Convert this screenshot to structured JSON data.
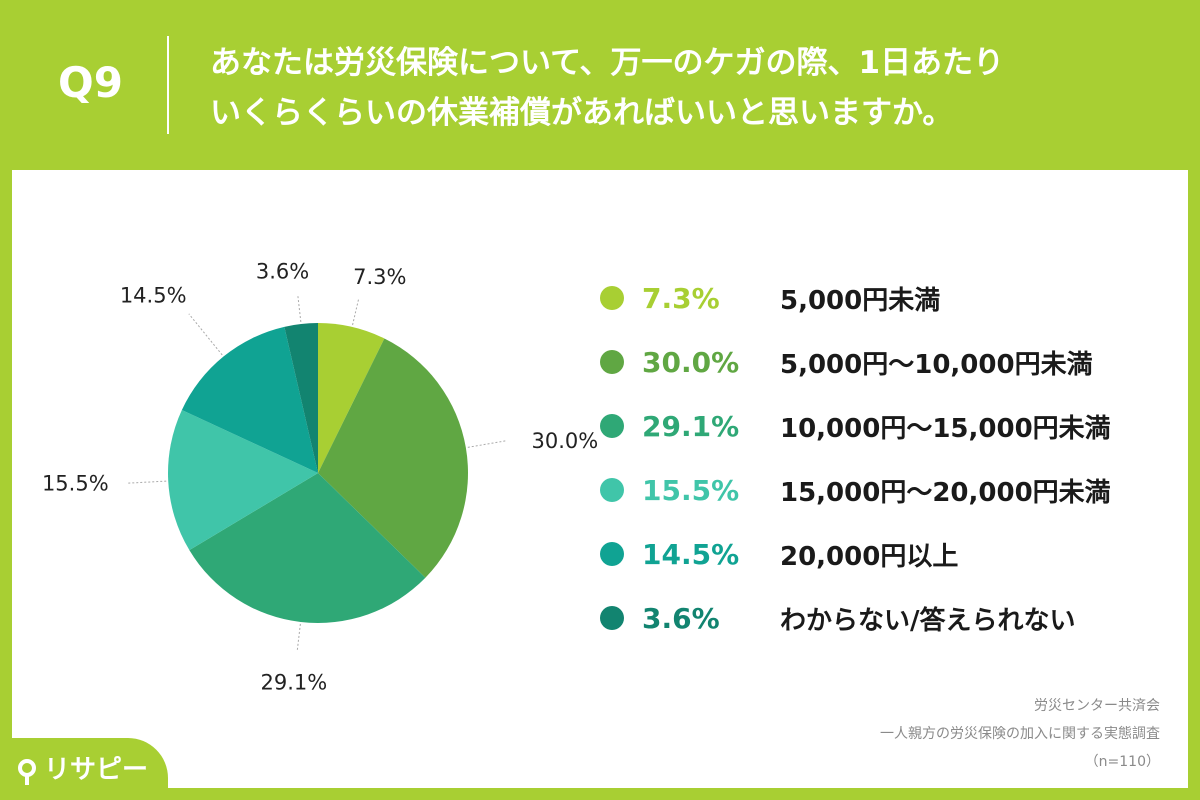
{
  "header": {
    "question_id": "Q9",
    "question_lines": [
      "あなたは労災保険について、万一のケガの際、1日あたり",
      "いくらくらいの休業補償があればいいと思いますか。"
    ]
  },
  "chart_data": {
    "type": "pie",
    "start_angle_deg": 0,
    "direction": "clockwise",
    "slices": [
      {
        "label": "5,000円未満",
        "value": 7.3,
        "pct_label": "7.3%",
        "color": "#a8cf33"
      },
      {
        "label": "5,000円〜10,000円未満",
        "value": 30.0,
        "pct_label": "30.0%",
        "color": "#60a743"
      },
      {
        "label": "10,000円〜15,000円未満",
        "value": 29.1,
        "pct_label": "29.1%",
        "color": "#2fa876"
      },
      {
        "label": "15,000円〜20,000円未満",
        "value": 15.5,
        "pct_label": "15.5%",
        "color": "#40c5a9"
      },
      {
        "label": "20,000円以上",
        "value": 14.5,
        "pct_label": "14.5%",
        "color": "#10a393"
      },
      {
        "label": "わからない/答えられない",
        "value": 3.6,
        "pct_label": "3.6%",
        "color": "#128470"
      }
    ]
  },
  "source": {
    "org": "労災センター共済会",
    "survey": "一人親方の労災保険の加入に関する実態調査",
    "sample": "（n=110）"
  },
  "logo": {
    "text": "リサピー"
  }
}
